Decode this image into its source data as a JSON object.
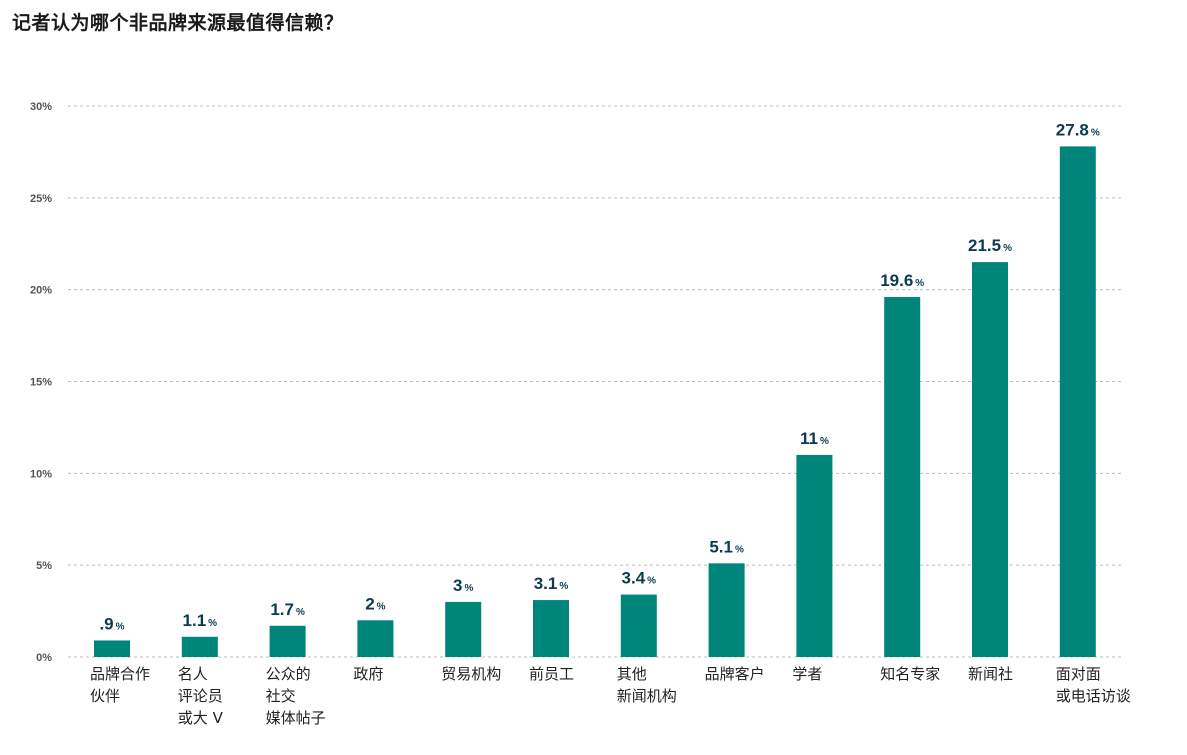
{
  "title": "记者认为哪个非品牌来源最值得信赖？",
  "colors": {
    "bar": "#00857a",
    "grid": "#bdbdbd",
    "value_label": "#0c3b4f"
  },
  "chart_data": {
    "type": "bar",
    "categories": [
      [
        "品牌合作",
        "伙伴"
      ],
      [
        "名人",
        "评论员",
        "或大 V"
      ],
      [
        "公众的",
        "社交",
        "媒体帖子"
      ],
      [
        "政府"
      ],
      [
        "贸易机构"
      ],
      [
        "前员工"
      ],
      [
        "其他",
        "新闻机构"
      ],
      [
        "品牌客户"
      ],
      [
        "学者"
      ],
      [
        "知名专家"
      ],
      [
        "新闻社"
      ],
      [
        "面对面",
        "或电话访谈"
      ]
    ],
    "values": [
      0.9,
      1.1,
      1.7,
      2,
      3,
      3.1,
      3.4,
      5.1,
      11,
      19.6,
      21.5,
      27.8
    ],
    "value_labels": [
      ".9",
      "1.1",
      "1.7",
      "2",
      "3",
      "3.1",
      "3.4",
      "5.1",
      "11",
      "19.6",
      "21.5",
      "27.8"
    ],
    "value_unit": "%",
    "yticks": [
      "0%",
      "5%",
      "10%",
      "15%",
      "20%",
      "25%",
      "30%"
    ],
    "ylim": [
      0,
      30
    ],
    "ytick_step": 5,
    "grid": true,
    "title": "记者认为哪个非品牌来源最值得信赖？"
  }
}
